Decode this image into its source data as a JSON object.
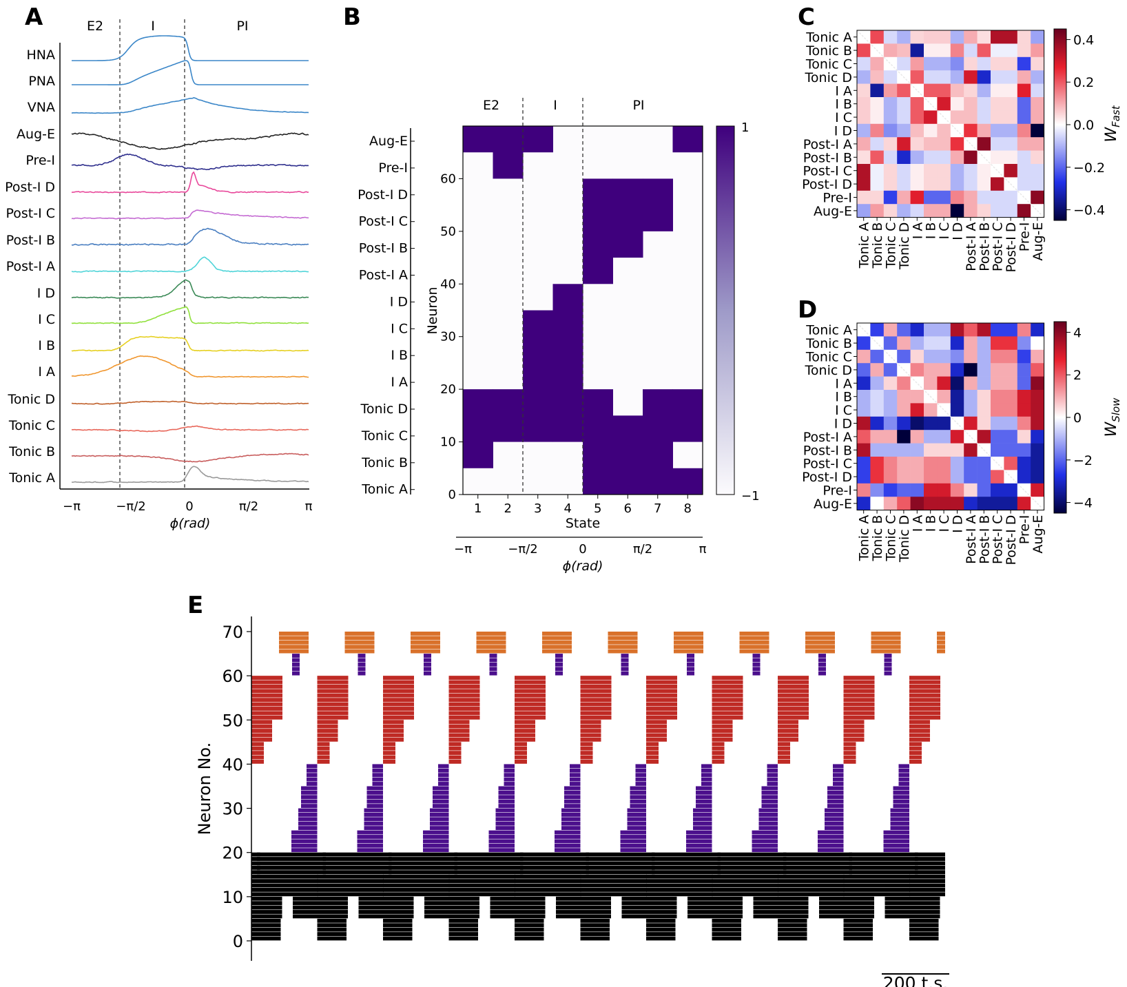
{
  "panels": {
    "a": "A",
    "b": "B",
    "c": "C",
    "d": "D",
    "e": "E"
  },
  "phase_labels": [
    "E2",
    "I",
    "PI"
  ],
  "phase_ticks": [
    "−π",
    "−π/2",
    "0",
    "π/2",
    "π"
  ],
  "phi_label": "ϕ(rad)",
  "chart_data": [
    {
      "id": "A",
      "type": "line",
      "title": "",
      "xlabel": "ϕ(rad)",
      "xlim": [
        -3.1416,
        3.1416
      ],
      "phase_boundaries": [
        -1.5708,
        0
      ],
      "trace_labels": [
        "HNA",
        "PNA",
        "VNA",
        "Aug-E",
        "Pre-I",
        "Post-I D",
        "Post-I C",
        "Post-I B",
        "Post-I A",
        "I D",
        "I C",
        "I B",
        "I A",
        "Tonic D",
        "Tonic C",
        "Tonic B",
        "Tonic A"
      ],
      "trace_colors": [
        "#3a86c8",
        "#3a86c8",
        "#3a86c8",
        "#222222",
        "#2d2d8c",
        "#e8479a",
        "#c46ad2",
        "#4a7fc1",
        "#4fd4d8",
        "#3b8a57",
        "#8fe03a",
        "#e6d020",
        "#f0962e",
        "#c0602a",
        "#e8675a",
        "#c85c5c",
        "#999999"
      ]
    },
    {
      "id": "B",
      "type": "heatmap",
      "xlabel": "State",
      "ylabel": "Neuron",
      "x": [
        1,
        2,
        3,
        4,
        5,
        6,
        7,
        8
      ],
      "yticks": [
        0,
        10,
        20,
        30,
        40,
        50,
        60
      ],
      "group_labels": [
        "Aug-E",
        "Pre-I",
        "Post-I D",
        "Post-I C",
        "Post-I B",
        "Post-I A",
        "I D",
        "I C",
        "I B",
        "I A",
        "Tonic D",
        "Tonic C",
        "Tonic B",
        "Tonic A"
      ],
      "colorbar_ticks": [
        "1",
        "−1"
      ],
      "active_ranges": [
        [
          [
            5,
            19
          ],
          [
            10,
            19
          ],
          [
            10,
            24
          ],
          [
            10,
            39
          ],
          [
            0,
            19
          ],
          [
            0,
            14
          ],
          [
            0,
            19
          ],
          [
            10,
            19
          ]
        ],
        [
          [
            65,
            69
          ],
          [
            60,
            69
          ],
          [
            65,
            69
          ],
          [],
          [],
          [],
          [],
          [
            65,
            69
          ]
        ],
        [
          [],
          [],
          [
            20,
            34
          ],
          [],
          [
            40,
            59
          ],
          [
            45,
            59
          ],
          [
            50,
            59
          ],
          []
        ],
        [
          [],
          [],
          [],
          [],
          [],
          [],
          [
            0,
            4
          ],
          [
            0,
            4
          ]
        ]
      ],
      "secondary_axis_ticks": [
        "−π",
        "−π/2",
        "0",
        "π/2",
        "π"
      ],
      "secondary_axis_label": "ϕ(rad)"
    },
    {
      "id": "C",
      "type": "heatmap",
      "labels": [
        "Tonic A",
        "Tonic B",
        "Tonic C",
        "Tonic D",
        "I A",
        "I B",
        "I C",
        "I D",
        "Post-I A",
        "Post-I B",
        "Post-I C",
        "Post-I D",
        "Pre-I",
        "Aug-E"
      ],
      "colorbar_label": "W_Fast",
      "colorbar_ticks": [
        "0.4",
        "0.2",
        "0.0",
        "−0.2",
        "−0.4"
      ],
      "vlim": [
        -0.45,
        0.45
      ],
      "values": [
        [
          0,
          0.22,
          -0.05,
          -0.1,
          0.05,
          0.06,
          0.06,
          -0.1,
          0.1,
          0.04,
          0.35,
          0.35,
          0.05,
          -0.12
        ],
        [
          0.22,
          0,
          0.1,
          0.08,
          -0.35,
          0.02,
          0.02,
          0.15,
          -0.05,
          0.2,
          -0.02,
          -0.02,
          0.05,
          0.12
        ],
        [
          -0.05,
          0.1,
          0,
          -0.05,
          0.12,
          -0.1,
          -0.1,
          -0.15,
          0.05,
          -0.05,
          0.05,
          0.05,
          -0.25,
          0.05
        ],
        [
          -0.1,
          0.08,
          -0.05,
          0,
          0.2,
          -0.05,
          -0.05,
          -0.1,
          0.3,
          -0.3,
          -0.05,
          -0.05,
          0.1,
          -0.1
        ],
        [
          0.05,
          -0.35,
          0.12,
          0.2,
          0,
          0.2,
          0.2,
          0.08,
          0.05,
          -0.1,
          0.02,
          0.02,
          0.28,
          -0.05
        ],
        [
          0.06,
          0.02,
          -0.1,
          -0.05,
          0.2,
          0,
          0.3,
          0.02,
          0.08,
          -0.05,
          0.05,
          0.05,
          -0.2,
          0.1
        ],
        [
          0.06,
          0.02,
          -0.1,
          -0.05,
          0.2,
          0.3,
          0,
          0.08,
          0.08,
          -0.05,
          0.05,
          0.05,
          -0.2,
          0.1
        ],
        [
          -0.1,
          0.15,
          -0.15,
          -0.1,
          0.08,
          0.02,
          0.08,
          0,
          0.25,
          0.1,
          -0.1,
          -0.1,
          0.15,
          -0.45
        ],
        [
          0.1,
          -0.05,
          0.05,
          0.3,
          0.05,
          0.08,
          0.08,
          0.25,
          0,
          0.4,
          -0.05,
          -0.05,
          0.1,
          0.1
        ],
        [
          0.04,
          0.2,
          -0.05,
          -0.3,
          -0.1,
          -0.05,
          -0.05,
          0.1,
          0.4,
          0,
          0.02,
          0.02,
          -0.05,
          0.05
        ],
        [
          0.35,
          -0.02,
          0.05,
          -0.05,
          0.02,
          0.05,
          0.05,
          -0.1,
          -0.05,
          0.02,
          0,
          0.35,
          -0.05,
          -0.05
        ],
        [
          0.35,
          -0.02,
          0.05,
          -0.05,
          0.02,
          0.05,
          0.05,
          -0.1,
          -0.05,
          0.02,
          0.35,
          0,
          -0.05,
          -0.05
        ],
        [
          0.05,
          0.05,
          -0.25,
          0.1,
          0.28,
          -0.2,
          -0.2,
          0.15,
          0.1,
          -0.05,
          -0.05,
          -0.05,
          0,
          0.4
        ],
        [
          -0.12,
          0.12,
          0.05,
          -0.1,
          -0.05,
          0.1,
          0.1,
          -0.45,
          0.1,
          0.05,
          -0.05,
          -0.05,
          0.4,
          0
        ]
      ]
    },
    {
      "id": "D",
      "type": "heatmap",
      "labels": [
        "Tonic A",
        "Tonic B",
        "Tonic C",
        "Tonic D",
        "I A",
        "I B",
        "I C",
        "I D",
        "Post-I A",
        "Post-I B",
        "Post-I C",
        "Post-I D",
        "Pre-I",
        "Aug-E"
      ],
      "colorbar_label": "W_Slow",
      "colorbar_ticks": [
        "4",
        "2",
        "0",
        "−2",
        "−4"
      ],
      "vlim": [
        -4.5,
        4.5
      ],
      "values": [
        [
          0,
          -2.5,
          1,
          -2,
          -3,
          -1,
          -1,
          3.5,
          2,
          3.5,
          -2.5,
          -2.5,
          1.5,
          -3
        ],
        [
          -2.5,
          0,
          -2,
          1,
          -1,
          -0.5,
          -0.5,
          -3,
          1,
          -1,
          2.5,
          2.5,
          -1.5,
          0
        ],
        [
          1,
          -2,
          0,
          -2,
          0.5,
          -1,
          -1,
          -1.5,
          1,
          -1,
          1.5,
          1.5,
          -2.5,
          1
        ],
        [
          -2,
          1,
          -2,
          0,
          1.5,
          1,
          1,
          -3,
          -4.5,
          -1,
          1,
          1,
          -2,
          2
        ],
        [
          -3,
          -1,
          0.5,
          1.5,
          0,
          1,
          3,
          -4,
          1,
          -1,
          1,
          1,
          -2,
          4
        ],
        [
          -1,
          -0.5,
          -1,
          1,
          1,
          0,
          1,
          -3.5,
          -1,
          0.5,
          1.5,
          1.5,
          3,
          3.5
        ],
        [
          -1,
          -0.5,
          -1,
          1,
          3,
          1,
          0,
          -3.5,
          -1,
          0.5,
          1.5,
          1.5,
          3,
          3.5
        ],
        [
          3.5,
          -3,
          -1.5,
          -3,
          -4,
          -3.5,
          -3.5,
          0,
          3,
          0.5,
          -1,
          -1,
          1.5,
          3.5
        ],
        [
          2,
          1,
          1,
          -4.5,
          1,
          -1,
          -1,
          3,
          0,
          3.5,
          -2,
          -2,
          0.5,
          -3
        ],
        [
          3.5,
          -1,
          -1,
          -1,
          -1,
          0.5,
          0.5,
          0.5,
          3.5,
          0,
          -2,
          -2,
          -2,
          -3.5
        ],
        [
          -2.5,
          2.5,
          1.5,
          1,
          1,
          1.5,
          1.5,
          -1,
          -2,
          -2,
          0,
          2,
          -3,
          -3.5
        ],
        [
          -2.5,
          2.5,
          1.5,
          1,
          1,
          1.5,
          1.5,
          -1,
          -2,
          -2,
          2,
          0,
          -3,
          -3.5
        ],
        [
          1.5,
          -1.5,
          -2.5,
          -2,
          -2,
          3,
          3,
          1.5,
          0.5,
          -2,
          -3,
          -3,
          0,
          3
        ],
        [
          -3,
          0,
          1,
          2,
          4,
          3.5,
          3.5,
          3.5,
          -3,
          -3.5,
          -3.5,
          -3.5,
          3,
          0
        ]
      ]
    },
    {
      "id": "E",
      "type": "raster",
      "ylabel": "Neuron No.",
      "yticks": [
        0,
        10,
        20,
        30,
        40,
        50,
        60,
        70
      ],
      "ylim": [
        -3,
        73
      ],
      "scale_bar_label": "200 t.s.",
      "cycles": 11,
      "group_colors": {
        "tonic": "#000000",
        "I": "#4b0f8c",
        "post": "#bf2a24",
        "pre": "#4b0f8c",
        "aug": "#d9712a"
      }
    }
  ]
}
